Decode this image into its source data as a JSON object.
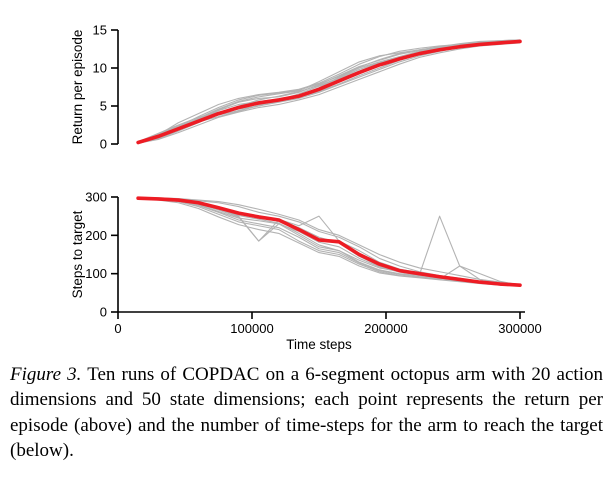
{
  "figure": {
    "caption_label": "Figure 3.",
    "caption_text": "Ten runs of COPDAC on a 6-segment octopus arm with 20 action dimensions and 50 state dimensions; each point represents the return per episode (above) and the number of time-steps for the arm to reach the target (below)."
  },
  "colors": {
    "mean_line": "#ed1c24",
    "run_line": "#b3b3b3",
    "axis": "#000000"
  },
  "chart_data": [
    {
      "type": "line",
      "title": "",
      "xlabel": "",
      "ylabel": "Return per episode",
      "xlim": [
        0,
        300000
      ],
      "ylim": [
        0,
        15
      ],
      "yticks": [
        0,
        5,
        10,
        15
      ],
      "ytick_labels": [
        "0",
        "5",
        "10",
        "15"
      ],
      "xticks": [],
      "xtick_labels": [],
      "grid": false,
      "legend": "none",
      "x": [
        15000,
        30000,
        45000,
        60000,
        75000,
        90000,
        105000,
        120000,
        135000,
        150000,
        165000,
        180000,
        195000,
        210000,
        225000,
        240000,
        255000,
        270000,
        285000,
        300000
      ],
      "series": [
        {
          "name": "run 1",
          "values": [
            0.1,
            0.8,
            1.8,
            3.2,
            4.5,
            5.5,
            6.0,
            6.2,
            6.8,
            7.8,
            9.0,
            10.2,
            11.0,
            11.8,
            12.3,
            12.8,
            13.2,
            13.5,
            13.6,
            13.7
          ]
        },
        {
          "name": "run 2",
          "values": [
            0.3,
            1.4,
            2.5,
            3.5,
            4.2,
            4.6,
            5.0,
            5.5,
            6.0,
            6.8,
            7.8,
            8.8,
            9.8,
            10.8,
            11.6,
            12.2,
            12.7,
            13.0,
            13.2,
            13.4
          ]
        },
        {
          "name": "run 3",
          "values": [
            0.2,
            1.2,
            2.8,
            4.0,
            5.2,
            6.0,
            6.5,
            6.8,
            7.2,
            8.0,
            9.2,
            10.5,
            11.5,
            12.2,
            12.6,
            12.9,
            13.1,
            13.3,
            13.5,
            13.6
          ]
        },
        {
          "name": "run 4",
          "values": [
            0.1,
            0.6,
            1.5,
            2.5,
            3.5,
            4.2,
            4.8,
            5.2,
            5.8,
            6.5,
            7.5,
            8.5,
            9.5,
            10.5,
            11.4,
            12.0,
            12.5,
            12.9,
            13.1,
            13.3
          ]
        },
        {
          "name": "run 5",
          "values": [
            0.2,
            1.0,
            2.2,
            3.4,
            4.6,
            5.6,
            6.2,
            6.6,
            7.0,
            8.2,
            9.5,
            10.8,
            11.6,
            12.0,
            12.4,
            12.7,
            13.0,
            13.2,
            13.4,
            13.5
          ]
        },
        {
          "name": "run 6",
          "values": [
            0.3,
            1.3,
            2.4,
            3.1,
            3.8,
            4.4,
            5.0,
            5.6,
            6.4,
            7.4,
            8.8,
            10.0,
            10.8,
            11.5,
            12.1,
            12.6,
            13.0,
            13.3,
            13.5,
            13.6
          ]
        },
        {
          "name": "run 7",
          "values": [
            0.1,
            0.9,
            2.0,
            3.3,
            4.4,
            5.2,
            5.6,
            5.9,
            6.2,
            6.9,
            7.9,
            9.0,
            10.0,
            11.0,
            11.8,
            12.3,
            12.7,
            13.0,
            13.2,
            13.4
          ]
        },
        {
          "name": "run 8",
          "values": [
            0.2,
            1.1,
            2.1,
            2.9,
            3.6,
            4.3,
            5.1,
            5.8,
            6.6,
            7.6,
            8.6,
            9.6,
            10.6,
            11.4,
            12.0,
            12.5,
            12.9,
            13.2,
            13.4,
            13.5
          ]
        },
        {
          "name": "run 9",
          "values": [
            0.2,
            1.2,
            2.3,
            3.6,
            4.8,
            5.8,
            6.4,
            6.7,
            7.1,
            7.9,
            8.9,
            10.1,
            11.1,
            11.9,
            12.4,
            12.8,
            13.1,
            13.3,
            13.5,
            13.6
          ]
        },
        {
          "name": "run 10",
          "values": [
            0.1,
            0.7,
            1.7,
            2.8,
            4.0,
            5.0,
            5.8,
            6.3,
            6.9,
            7.7,
            8.7,
            9.8,
            10.7,
            11.5,
            12.2,
            12.7,
            13.1,
            13.4,
            13.6,
            13.7
          ]
        },
        {
          "name": "mean",
          "values": [
            0.2,
            1.0,
            2.0,
            3.0,
            4.0,
            4.8,
            5.4,
            5.8,
            6.3,
            7.2,
            8.3,
            9.4,
            10.4,
            11.2,
            11.9,
            12.4,
            12.8,
            13.1,
            13.3,
            13.5
          ]
        }
      ]
    },
    {
      "type": "line",
      "title": "",
      "xlabel": "Time steps",
      "ylabel": "Steps to target",
      "xlim": [
        0,
        300000
      ],
      "ylim": [
        0,
        300
      ],
      "yticks": [
        0,
        100,
        200,
        300
      ],
      "ytick_labels": [
        "0",
        "100",
        "200",
        "300"
      ],
      "xticks": [
        0,
        100000,
        200000,
        300000
      ],
      "xtick_labels": [
        "0",
        "100000",
        "200000",
        "300000"
      ],
      "grid": false,
      "legend": "none",
      "x": [
        15000,
        30000,
        45000,
        60000,
        75000,
        90000,
        105000,
        120000,
        135000,
        150000,
        165000,
        180000,
        195000,
        210000,
        225000,
        240000,
        255000,
        270000,
        285000,
        300000
      ],
      "series": [
        {
          "name": "run 1",
          "values": [
            298,
            296,
            290,
            280,
            262,
            245,
            238,
            230,
            200,
            170,
            160,
            130,
            110,
            100,
            95,
            88,
            82,
            76,
            72,
            70
          ]
        },
        {
          "name": "run 2",
          "values": [
            297,
            294,
            293,
            290,
            285,
            275,
            260,
            250,
            235,
            210,
            195,
            170,
            140,
            120,
            105,
            95,
            88,
            80,
            75,
            72
          ]
        },
        {
          "name": "run 3",
          "values": [
            296,
            293,
            288,
            275,
            255,
            235,
            225,
            215,
            185,
            160,
            150,
            125,
            105,
            95,
            90,
            85,
            80,
            75,
            71,
            69
          ]
        },
        {
          "name": "run 4",
          "values": [
            299,
            297,
            295,
            288,
            270,
            250,
            185,
            240,
            220,
            195,
            180,
            145,
            120,
            105,
            98,
            90,
            84,
            78,
            73,
            70
          ]
        },
        {
          "name": "run 5",
          "values": [
            297,
            295,
            291,
            283,
            268,
            252,
            242,
            232,
            205,
            175,
            160,
            135,
            115,
            105,
            98,
            250,
            120,
            85,
            75,
            71
          ]
        },
        {
          "name": "run 6",
          "values": [
            298,
            296,
            292,
            286,
            274,
            260,
            250,
            242,
            225,
            250,
            185,
            160,
            130,
            112,
            102,
            94,
            86,
            79,
            74,
            71
          ]
        },
        {
          "name": "run 7",
          "values": [
            297,
            294,
            289,
            278,
            260,
            240,
            230,
            220,
            195,
            165,
            155,
            128,
            108,
            98,
            92,
            86,
            120,
            100,
            80,
            70
          ]
        },
        {
          "name": "run 8",
          "values": [
            299,
            298,
            296,
            292,
            288,
            280,
            268,
            255,
            240,
            215,
            200,
            175,
            150,
            130,
            115,
            105,
            95,
            85,
            78,
            72
          ]
        },
        {
          "name": "run 9",
          "values": [
            296,
            292,
            285,
            270,
            248,
            228,
            215,
            205,
            180,
            155,
            145,
            120,
            102,
            94,
            89,
            84,
            79,
            74,
            70,
            68
          ]
        },
        {
          "name": "run 10",
          "values": [
            298,
            295,
            290,
            282,
            266,
            248,
            185,
            230,
            210,
            182,
            170,
            140,
            118,
            104,
            96,
            89,
            83,
            77,
            72,
            69
          ]
        },
        {
          "name": "mean",
          "values": [
            297,
            295,
            292,
            285,
            272,
            258,
            248,
            240,
            215,
            188,
            183,
            150,
            125,
            108,
            100,
            92,
            85,
            78,
            73,
            70
          ]
        }
      ]
    }
  ]
}
